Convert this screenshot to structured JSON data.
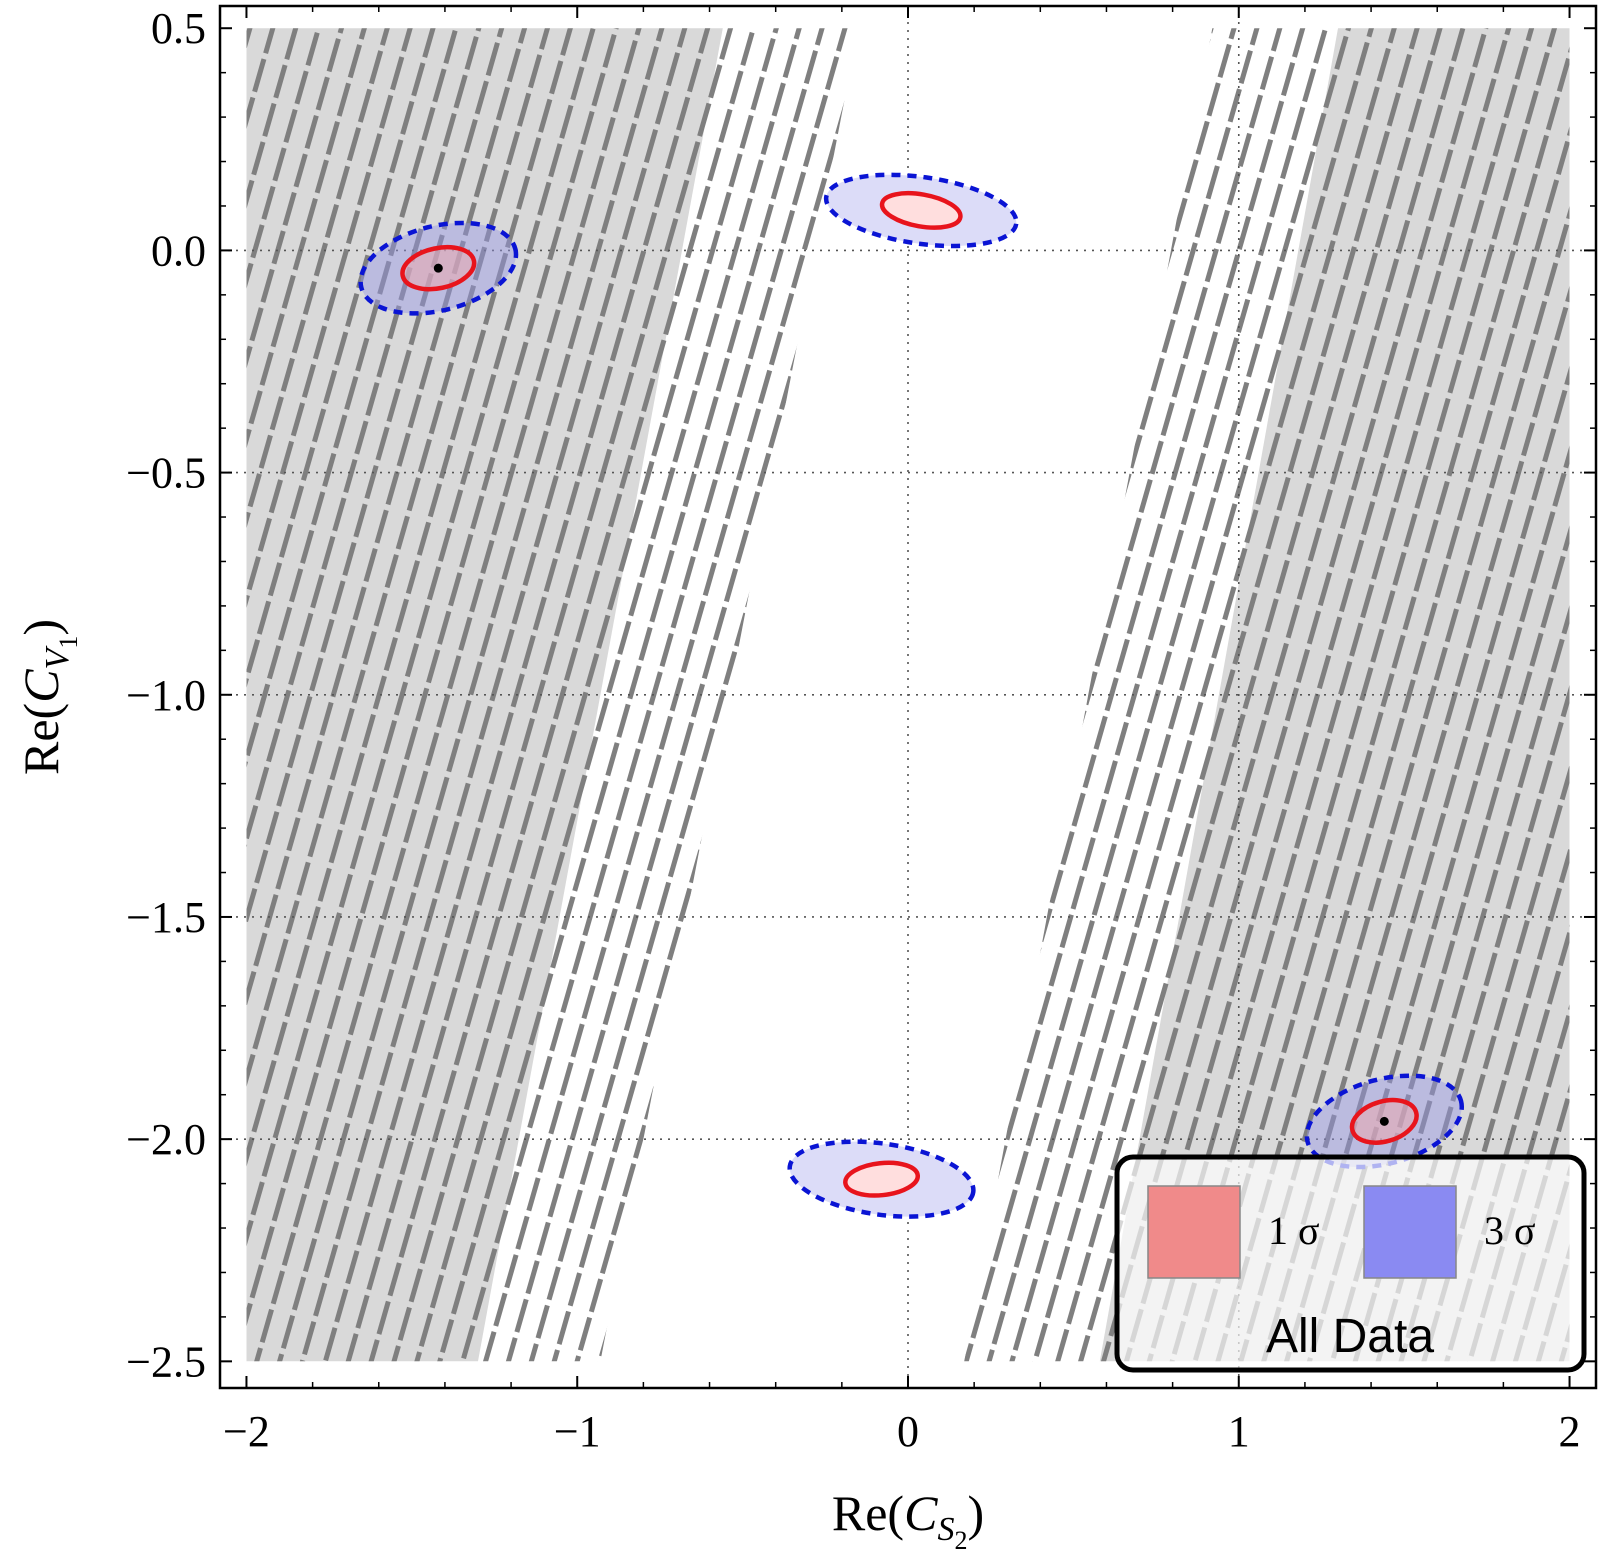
{
  "chart_data": {
    "type": "contour",
    "title": "",
    "xlabel": {
      "prefix": "Re(",
      "symbol": "C",
      "sub": "S",
      "subsub": "2",
      "suffix": ")"
    },
    "ylabel": {
      "prefix": "Re(",
      "symbol": "C",
      "sub": "V",
      "subsub": "1",
      "suffix": ")"
    },
    "xlim": [
      -2.08,
      2.08
    ],
    "ylim": [
      -2.56,
      0.55
    ],
    "x_ticks": [
      {
        "value": -2,
        "label": "−2"
      },
      {
        "value": -1,
        "label": "−1"
      },
      {
        "value": 0,
        "label": "0"
      },
      {
        "value": 1,
        "label": "1"
      },
      {
        "value": 2,
        "label": "2"
      }
    ],
    "y_ticks": [
      {
        "value": 0.5,
        "label": "0.5"
      },
      {
        "value": 0,
        "label": "0.0"
      },
      {
        "value": -0.5,
        "label": "−0.5"
      },
      {
        "value": -1,
        "label": "−1.0"
      },
      {
        "value": -1.5,
        "label": "−1.5"
      },
      {
        "value": -2,
        "label": "−2.0"
      },
      {
        "value": -2.5,
        "label": "−2.5"
      }
    ],
    "grid_lines": {
      "x": [
        0,
        1
      ],
      "y": [
        0,
        -0.5,
        -1,
        -1.5,
        -2
      ],
      "style": "dotted"
    },
    "excluded_regions": [
      {
        "name": "left-gray-band",
        "polygon": [
          [
            -2,
            0.5
          ],
          [
            -0.56,
            0.5
          ],
          [
            -1.3,
            -2.5
          ],
          [
            -2,
            -2.5
          ]
        ],
        "color": "#d9d9d9"
      },
      {
        "name": "right-gray-band",
        "polygon": [
          [
            1.3,
            0.5
          ],
          [
            2,
            0.5
          ],
          [
            2,
            -2.5
          ],
          [
            0.58,
            -2.5
          ]
        ],
        "color": "#d9d9d9"
      }
    ],
    "hatched_regions": [
      {
        "name": "left-hatch-band",
        "polygon": [
          [
            -2,
            0.5
          ],
          [
            -0.15,
            0.5
          ],
          [
            -0.93,
            -2.5
          ],
          [
            -2,
            -2.5
          ]
        ]
      },
      {
        "name": "right-hatch-band",
        "polygon": [
          [
            0.92,
            0.5
          ],
          [
            2,
            0.5
          ],
          [
            2,
            -2.5
          ],
          [
            0.17,
            -2.5
          ]
        ]
      }
    ],
    "hatch_color": "#7f7f7f",
    "fit_regions": [
      {
        "name": "region-top-left",
        "best_fit": [
          -1.42,
          -0.04
        ],
        "one_sigma": {
          "rx": 0.11,
          "ry": 0.045,
          "angle_deg": -12
        },
        "three_sigma": {
          "rx": 0.24,
          "ry": 0.095,
          "angle_deg": -14
        },
        "shaded": true
      },
      {
        "name": "region-top-center",
        "best_fit": [
          0.04,
          0.09
        ],
        "one_sigma": {
          "rx": 0.12,
          "ry": 0.036,
          "angle_deg": 10
        },
        "three_sigma": {
          "rx": 0.29,
          "ry": 0.075,
          "angle_deg": 8
        },
        "shaded": false
      },
      {
        "name": "region-bottom-center",
        "best_fit": [
          -0.08,
          -2.09
        ],
        "one_sigma": {
          "rx": 0.11,
          "ry": 0.036,
          "angle_deg": -6
        },
        "three_sigma": {
          "rx": 0.28,
          "ry": 0.08,
          "angle_deg": 8
        },
        "shaded": false
      },
      {
        "name": "region-bottom-right",
        "best_fit": [
          1.44,
          -1.96
        ],
        "one_sigma": {
          "rx": 0.1,
          "ry": 0.045,
          "angle_deg": -16
        },
        "three_sigma": {
          "rx": 0.24,
          "ry": 0.095,
          "angle_deg": -15
        },
        "shaded": true
      }
    ],
    "colors": {
      "one_sigma_line": "#e8141c",
      "one_sigma_fill": "#ffdede",
      "three_sigma_line": "#0a14d4",
      "three_sigma_fill": "#dcdcf8",
      "best_fit": "#000000"
    },
    "legend": {
      "position": "bottom-right",
      "entries": [
        {
          "label": "1 σ",
          "color": "#f08a8a"
        },
        {
          "label": "3 σ",
          "color": "#8a8af2"
        }
      ],
      "title": "All Data"
    }
  }
}
